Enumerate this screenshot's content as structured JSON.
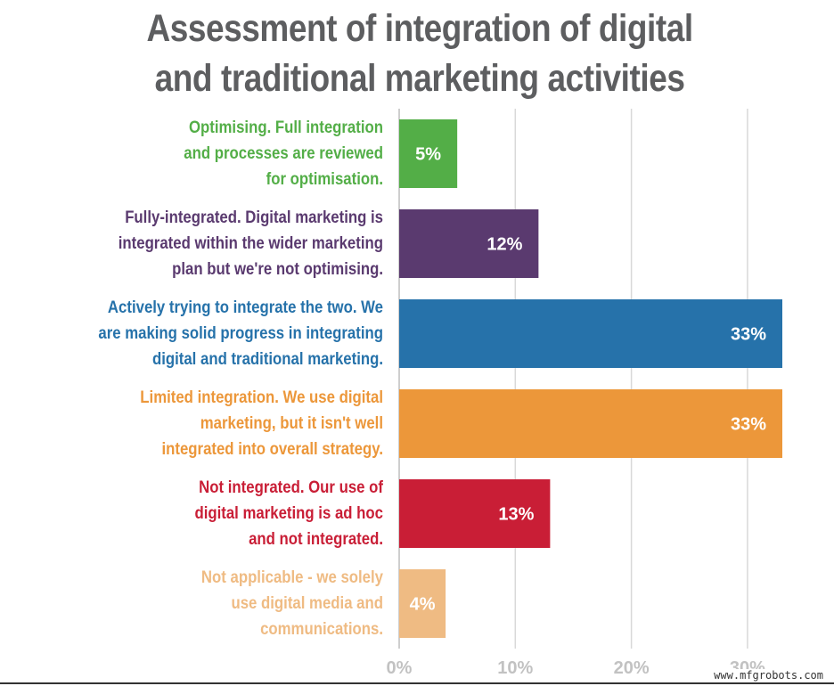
{
  "chart_data": {
    "type": "bar",
    "orientation": "horizontal",
    "title": [
      "Assessment of integration of digital",
      "and traditional marketing activities"
    ],
    "categories": [
      [
        "Optimising. Full integration",
        "and processes are reviewed",
        "for optimisation."
      ],
      [
        "Fully-integrated. Digital marketing is",
        "integrated within the wider marketing",
        "plan but we're not optimising."
      ],
      [
        "Actively trying to integrate the two. We",
        "are making solid progress in integrating",
        "digital and traditional marketing."
      ],
      [
        "Limited integration. We use digital",
        "marketing, but it isn't well",
        "integrated into overall strategy."
      ],
      [
        "Not integrated. Our use of",
        "digital marketing is ad hoc",
        "and not integrated."
      ],
      [
        "Not applicable - we solely",
        "use digital media and",
        "communications."
      ]
    ],
    "values": [
      5,
      12,
      33,
      33,
      13,
      4
    ],
    "value_labels": [
      "5%",
      "12%",
      "33%",
      "33%",
      "13%",
      "4%"
    ],
    "colors": [
      "#53ae47",
      "#5a3a6f",
      "#2672aa",
      "#ec973a",
      "#c91e36",
      "#efbb83"
    ],
    "xlim": [
      0,
      33
    ],
    "xticks": [
      0,
      10,
      20,
      30
    ],
    "xtick_labels": [
      "0%",
      "10%",
      "20%",
      "30%"
    ],
    "grid": true,
    "grid_color": "#d8d8d8",
    "tick_label_color": "#c2c2c2",
    "title_color": "#5d5e60",
    "xlabel": "",
    "ylabel": ""
  },
  "watermark": "www.mfgrobots.com"
}
